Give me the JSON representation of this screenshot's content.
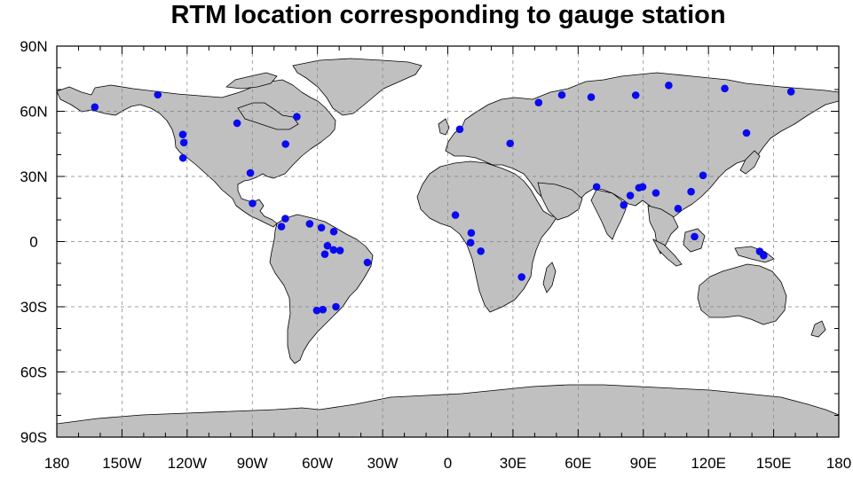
{
  "chart_data": {
    "type": "scatter",
    "title": "RTM location corresponding to gauge station",
    "projection": "cylindrical-equidistant",
    "xlim": [
      -180,
      180
    ],
    "ylim": [
      -90,
      90
    ],
    "grid": true,
    "colors": {
      "land": "#c0c0c0",
      "ocean": "#ffffff",
      "coast": "#000000",
      "points": "#0a0af0",
      "grid": "#808080"
    },
    "x_ticks": [
      {
        "value": -180,
        "label": "180"
      },
      {
        "value": -150,
        "label": "150W"
      },
      {
        "value": -120,
        "label": "120W"
      },
      {
        "value": -90,
        "label": "90W"
      },
      {
        "value": -60,
        "label": "60W"
      },
      {
        "value": -30,
        "label": "30W"
      },
      {
        "value": 0,
        "label": "0"
      },
      {
        "value": 30,
        "label": "30E"
      },
      {
        "value": 60,
        "label": "60E"
      },
      {
        "value": 90,
        "label": "90E"
      },
      {
        "value": 120,
        "label": "120E"
      },
      {
        "value": 150,
        "label": "150E"
      },
      {
        "value": 180,
        "label": "180"
      }
    ],
    "y_ticks": [
      {
        "value": 90,
        "label": "90N"
      },
      {
        "value": 60,
        "label": "60N"
      },
      {
        "value": 30,
        "label": "30N"
      },
      {
        "value": 0,
        "label": "0"
      },
      {
        "value": -30,
        "label": "30S"
      },
      {
        "value": -60,
        "label": "60S"
      },
      {
        "value": -90,
        "label": "90S"
      }
    ],
    "points": [
      {
        "lon": -162.5,
        "lat": 61.9
      },
      {
        "lon": -133.5,
        "lat": 67.6
      },
      {
        "lon": -122.0,
        "lat": 49.3
      },
      {
        "lon": -121.5,
        "lat": 45.6
      },
      {
        "lon": -121.9,
        "lat": 38.5
      },
      {
        "lon": -97.0,
        "lat": 54.5
      },
      {
        "lon": -90.9,
        "lat": 31.6
      },
      {
        "lon": -69.5,
        "lat": 57.5
      },
      {
        "lon": -74.7,
        "lat": 44.9
      },
      {
        "lon": -89.9,
        "lat": 17.6
      },
      {
        "lon": -74.8,
        "lat": 10.6
      },
      {
        "lon": -76.6,
        "lat": 6.9
      },
      {
        "lon": -63.6,
        "lat": 8.2
      },
      {
        "lon": -58.2,
        "lat": 6.4
      },
      {
        "lon": -52.5,
        "lat": 4.6
      },
      {
        "lon": -55.4,
        "lat": -1.9
      },
      {
        "lon": -52.6,
        "lat": -3.8
      },
      {
        "lon": -49.6,
        "lat": -4.1
      },
      {
        "lon": -56.6,
        "lat": -5.8
      },
      {
        "lon": -37.0,
        "lat": -9.6
      },
      {
        "lon": -60.3,
        "lat": -31.7
      },
      {
        "lon": -57.5,
        "lat": -31.3
      },
      {
        "lon": -51.5,
        "lat": -30.0
      },
      {
        "lon": 5.5,
        "lat": 51.7
      },
      {
        "lon": 28.7,
        "lat": 45.2
      },
      {
        "lon": 41.8,
        "lat": 64.0
      },
      {
        "lon": 52.5,
        "lat": 67.5
      },
      {
        "lon": 66.0,
        "lat": 66.5
      },
      {
        "lon": 86.5,
        "lat": 67.4
      },
      {
        "lon": 101.7,
        "lat": 71.9
      },
      {
        "lon": 127.5,
        "lat": 70.5
      },
      {
        "lon": 158.0,
        "lat": 69.0
      },
      {
        "lon": 137.5,
        "lat": 50.0
      },
      {
        "lon": 3.5,
        "lat": 12.2
      },
      {
        "lon": 10.8,
        "lat": 4.0
      },
      {
        "lon": 10.5,
        "lat": -0.5
      },
      {
        "lon": 15.2,
        "lat": -4.4
      },
      {
        "lon": 34.0,
        "lat": -16.3
      },
      {
        "lon": 68.5,
        "lat": 25.2
      },
      {
        "lon": 81.0,
        "lat": 16.8
      },
      {
        "lon": 84.0,
        "lat": 21.2
      },
      {
        "lon": 88.0,
        "lat": 24.8
      },
      {
        "lon": 89.7,
        "lat": 25.2
      },
      {
        "lon": 95.8,
        "lat": 22.4
      },
      {
        "lon": 106.0,
        "lat": 15.2
      },
      {
        "lon": 112.0,
        "lat": 23.0
      },
      {
        "lon": 117.5,
        "lat": 30.5
      },
      {
        "lon": 113.6,
        "lat": 2.3
      },
      {
        "lon": 143.6,
        "lat": -4.5
      },
      {
        "lon": 145.4,
        "lat": -6.4
      }
    ]
  }
}
